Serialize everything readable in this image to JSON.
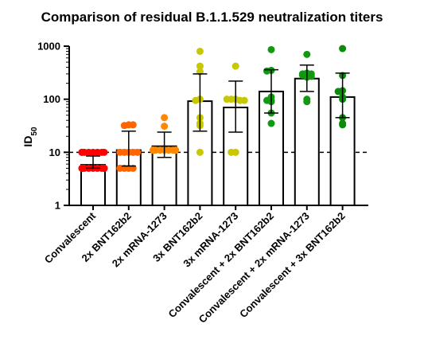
{
  "chart_data": {
    "type": "bar",
    "title": "Comparison of residual B.1.1.529 neutralization titers",
    "ylabel": "ID",
    "ylabel_sub": "50",
    "yscale": "log",
    "ylim": [
      1,
      1000
    ],
    "yticks": [
      1,
      10,
      100,
      1000
    ],
    "ytick_labels": [
      "1",
      "10",
      "100",
      "1000"
    ],
    "reference_line": 10,
    "categories": [
      "Convalescent",
      "2x BNT162b2",
      "2x mRNA-1273",
      "3x BNT162b2",
      "3x mRNA-1273",
      "Convalescent + 2x BNT162b2",
      "Convalescent + 2x mRNA-1273",
      "Convalescent + 3x BNT162b2"
    ],
    "values": [
      5.8,
      11,
      13,
      92,
      70,
      140,
      245,
      110
    ],
    "error_low": [
      5,
      5.5,
      8,
      25,
      24,
      55,
      140,
      45
    ],
    "error_high": [
      8.5,
      25,
      24,
      300,
      220,
      360,
      440,
      310
    ],
    "series_colors": [
      "#ff0000",
      "#ff6600",
      "#ff8800",
      "#c8c800",
      "#c8c800",
      "#119911",
      "#119911",
      "#0c8a0c"
    ],
    "points": [
      [
        10,
        10,
        10,
        10,
        10,
        10,
        10,
        10,
        5,
        5,
        5,
        5,
        5,
        5,
        5,
        5,
        5,
        5,
        5
      ],
      [
        33,
        32,
        33,
        10,
        10,
        10,
        10,
        10,
        5,
        5,
        5,
        5
      ],
      [
        45,
        31,
        11,
        11,
        11,
        11,
        11,
        11,
        11,
        11,
        11,
        11
      ],
      [
        800,
        420,
        330,
        100,
        95,
        45,
        35,
        32,
        10
      ],
      [
        420,
        100,
        100,
        95,
        100,
        95,
        10,
        10
      ],
      [
        860,
        350,
        340,
        110,
        95,
        95,
        90,
        55,
        35
      ],
      [
        700,
        310,
        300,
        290,
        300,
        285,
        270,
        260,
        100,
        90
      ],
      [
        900,
        280,
        145,
        140,
        110,
        100,
        45,
        35,
        33
      ]
    ]
  }
}
